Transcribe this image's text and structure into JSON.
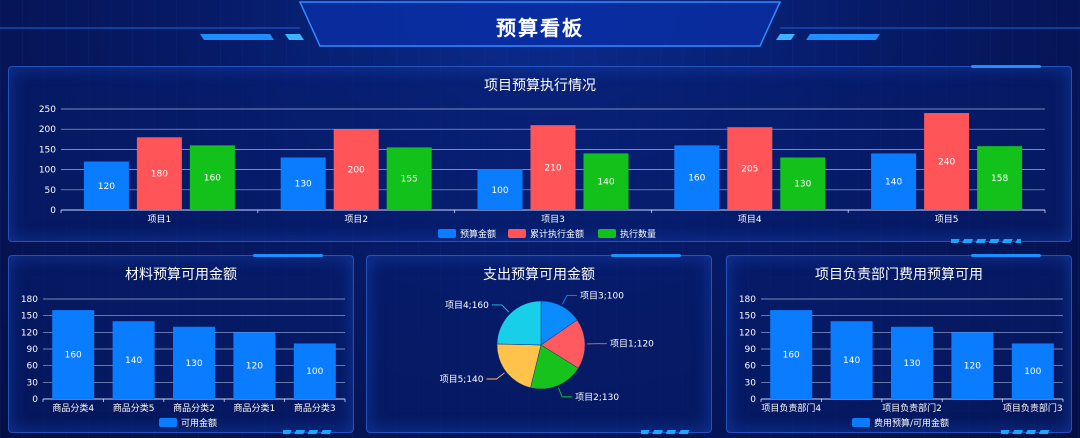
{
  "page": {
    "title": "预算看板"
  },
  "colors": {
    "blue": "#0a7cff",
    "red": "#ff5458",
    "green": "#12c21a",
    "pie_blue": "#0a8cff",
    "pie_red": "#ff5a5f",
    "pie_green": "#18c21c",
    "pie_yellow": "#ffc24a",
    "pie_cyan": "#17cfe8"
  },
  "panels": {
    "top": {
      "title": "项目预算执行情况"
    },
    "bottom_left": {
      "title": "材料预算可用金额"
    },
    "bottom_mid": {
      "title": "支出预算可用金额"
    },
    "bottom_right": {
      "title": "项目负责部门费用预算可用"
    }
  },
  "chart_data": [
    {
      "id": "project_exec",
      "type": "bar",
      "title": "项目预算执行情况",
      "categories": [
        "项目1",
        "项目2",
        "项目3",
        "项目4",
        "项目5"
      ],
      "series": [
        {
          "name": "预算金额",
          "color": "#0a7cff",
          "values": [
            120,
            130,
            100,
            160,
            140
          ]
        },
        {
          "name": "累计执行金额",
          "color": "#ff5458",
          "values": [
            180,
            200,
            210,
            205,
            240
          ]
        },
        {
          "name": "执行数量",
          "color": "#12c21a",
          "values": [
            160,
            155,
            140,
            130,
            158
          ]
        }
      ],
      "yticks": [
        0,
        50,
        100,
        150,
        200,
        250
      ],
      "ylim": [
        0,
        250
      ],
      "grid": true,
      "legend": "bottom"
    },
    {
      "id": "material",
      "type": "bar",
      "title": "材料预算可用金额",
      "categories": [
        "商品分类4",
        "商品分类5",
        "商品分类2",
        "商品分类1",
        "商品分类3"
      ],
      "series": [
        {
          "name": "可用金额",
          "color": "#0a7cff",
          "values": [
            160,
            140,
            130,
            120,
            100
          ]
        }
      ],
      "yticks": [
        0,
        30,
        60,
        90,
        120,
        150,
        180
      ],
      "ylim": [
        0,
        180
      ],
      "grid": true,
      "legend": "bottom"
    },
    {
      "id": "expense",
      "type": "pie",
      "title": "支出预算可用金额",
      "slices": [
        {
          "label": "项目3;100",
          "name": "项目3",
          "value": 100,
          "color": "#0a8cff"
        },
        {
          "label": "项目1;120",
          "name": "项目1",
          "value": 120,
          "color": "#ff5a5f"
        },
        {
          "label": "项目2;130",
          "name": "项目2",
          "value": 130,
          "color": "#18c21c"
        },
        {
          "label": "项目5;140",
          "name": "项目5",
          "value": 140,
          "color": "#ffc24a"
        },
        {
          "label": "项目4;160",
          "name": "项目4",
          "value": 160,
          "color": "#17cfe8"
        }
      ]
    },
    {
      "id": "dept",
      "type": "bar",
      "title": "项目负责部门费用预算可用",
      "categories": [
        "项目负责部门4",
        "",
        "项目负责部门2",
        "",
        "项目负责部门3"
      ],
      "series": [
        {
          "name": "费用预算/可用金额",
          "color": "#0a7cff",
          "values": [
            160,
            140,
            130,
            120,
            100
          ]
        }
      ],
      "yticks": [
        0,
        30,
        60,
        90,
        120,
        150,
        180
      ],
      "ylim": [
        0,
        180
      ],
      "grid": true,
      "legend": "bottom"
    }
  ]
}
